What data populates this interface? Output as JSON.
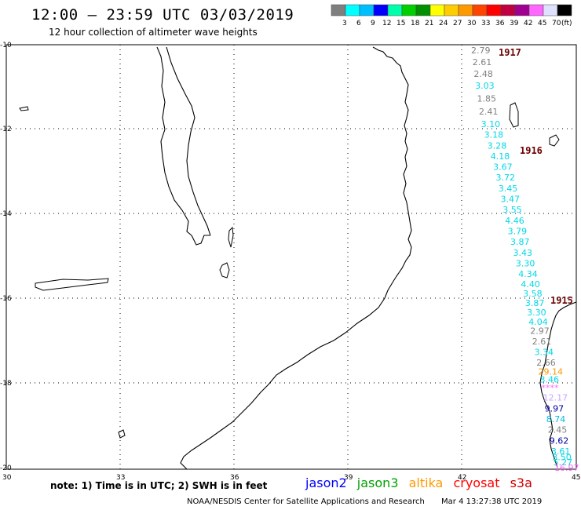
{
  "title": "12:00 – 23:59 UTC 03/03/2019",
  "subtitle": "12 hour collection of altimeter wave heights",
  "colorbar": {
    "colors": [
      "#7f7f7f",
      "#00ffff",
      "#00bfff",
      "#0000ff",
      "#00ffaa",
      "#00d000",
      "#009000",
      "#ffff00",
      "#ffcc00",
      "#ff9900",
      "#ff4400",
      "#ff0000",
      "#c00040",
      "#a00090",
      "#ff66ff",
      "#e0e0ff",
      "#000000"
    ],
    "labels": [
      "3",
      "6",
      "9",
      "12",
      "15",
      "18",
      "21",
      "24",
      "27",
      "30",
      "33",
      "36",
      "39",
      "42",
      "45",
      "70",
      "(ft)"
    ]
  },
  "map": {
    "lon_labels": [
      "30",
      "33",
      "36",
      "39",
      "42",
      "45"
    ],
    "lat_labels": [
      "-10",
      "-12",
      "-14",
      "-16",
      "-18",
      "-20"
    ]
  },
  "pass_labels": [
    "1917",
    "1916",
    "1915"
  ],
  "swh_points": [
    {
      "text": "2.79",
      "color": "#808080"
    },
    {
      "text": "2.61",
      "color": "#808080"
    },
    {
      "text": "2.48",
      "color": "#808080"
    },
    {
      "text": "3.03",
      "color": "#00d8e8"
    },
    {
      "text": "1.85",
      "color": "#808080"
    },
    {
      "text": "2.41",
      "color": "#808080"
    },
    {
      "text": "3.10",
      "color": "#00d8e8"
    },
    {
      "text": "3.18",
      "color": "#00d8e8"
    },
    {
      "text": "3.28",
      "color": "#00d8e8"
    },
    {
      "text": "4.18",
      "color": "#00d8e8"
    },
    {
      "text": "3.67",
      "color": "#00d8e8"
    },
    {
      "text": "3.72",
      "color": "#00d8e8"
    },
    {
      "text": "3.45",
      "color": "#00d8e8"
    },
    {
      "text": "3.47",
      "color": "#00d8e8"
    },
    {
      "text": "3.55",
      "color": "#00d8e8"
    },
    {
      "text": "4.46",
      "color": "#00d8e8"
    },
    {
      "text": "3.79",
      "color": "#00d8e8"
    },
    {
      "text": "3.87",
      "color": "#00d8e8"
    },
    {
      "text": "3.43",
      "color": "#00d8e8"
    },
    {
      "text": "3.30",
      "color": "#00d8e8"
    },
    {
      "text": "4.34",
      "color": "#00d8e8"
    },
    {
      "text": "4.40",
      "color": "#00d8e8"
    },
    {
      "text": "3.58",
      "color": "#00d8e8"
    },
    {
      "text": "3.87",
      "color": "#00d8e8"
    },
    {
      "text": "3.30",
      "color": "#00d8e8"
    },
    {
      "text": "4.04",
      "color": "#00d8e8"
    },
    {
      "text": "2.97",
      "color": "#808080"
    },
    {
      "text": "2.61",
      "color": "#808080"
    },
    {
      "text": "3.34",
      "color": "#00d8e8"
    },
    {
      "text": "2.66",
      "color": "#808080"
    },
    {
      "text": "29.14",
      "color": "#ff9900"
    },
    {
      "text": "3.46",
      "color": "#00d8e8"
    },
    {
      "text": "****",
      "color": "#ff66ff"
    },
    {
      "text": "12.17",
      "color": "#c8a8ff"
    },
    {
      "text": "9.97",
      "color": "#0000a0"
    },
    {
      "text": "8.74",
      "color": "#00b8e8"
    },
    {
      "text": "2.45",
      "color": "#808080"
    },
    {
      "text": "9.62",
      "color": "#0000a0"
    },
    {
      "text": "3.61",
      "color": "#00d8e8"
    },
    {
      "text": "3.50",
      "color": "#00d8e8"
    },
    {
      "text": "5.27",
      "color": "#00d8e8"
    },
    {
      "text": "16.97",
      "color": "#ff66ff"
    }
  ],
  "note": "note: 1) Time is in UTC; 2) SWH is in feet",
  "legend": [
    {
      "label": "jason2",
      "color": "#0000ff"
    },
    {
      "label": "jason3",
      "color": "#00a000"
    },
    {
      "label": "altika",
      "color": "#ff9900"
    },
    {
      "label": "cryosat",
      "color": "#ff0000"
    },
    {
      "label": "s3a",
      "color": "#cc0000"
    }
  ],
  "footer": {
    "credit": "NOAA/NESDIS Center for Satellite Applications and Research",
    "datetime": "Mar  4 13:27:38 UTC 2019"
  }
}
